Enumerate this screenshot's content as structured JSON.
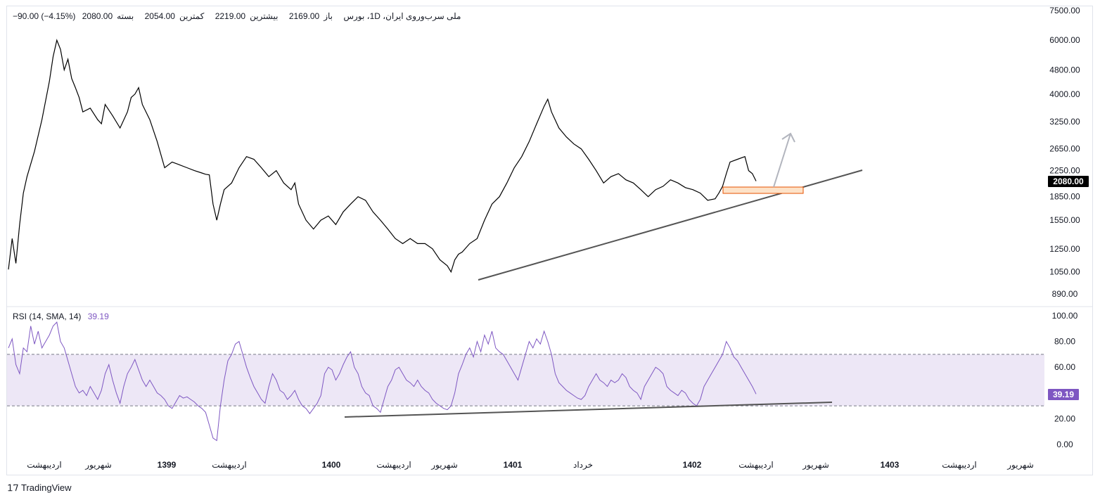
{
  "legend": {
    "symbol": "ملی سرب‌وروی ایران، 1D، بورس",
    "open_label": "باز",
    "open": "2169.00",
    "high_label": "بیشترین",
    "high": "2219.00",
    "low_label": "کمترین",
    "low": "2054.00",
    "close_label": "بسته",
    "close": "2080.00",
    "change": "−90.00 (−4.15%)"
  },
  "rsi_legend": {
    "label": "RSI (14, SMA, 14)",
    "value": "39.19"
  },
  "price_badge": "2080.00",
  "rsi_badge": "39.19",
  "branding": "TradingView",
  "colors": {
    "price": "#000000",
    "rsi": "#7e57c2",
    "rsi_band": "#ede7f6",
    "trend": "#545454",
    "arrow": "#b2b5be",
    "zone": "#fde2c8",
    "zone_border": "#e65100"
  },
  "chart_data": [
    {
      "type": "line",
      "name": "price",
      "scale": "log",
      "ylim": [
        830,
        7600
      ],
      "ytick_labels": [
        "7500.00",
        "6000.00",
        "4800.00",
        "4000.00",
        "3250.00",
        "2650.00",
        "2250.00",
        "1850.00",
        "1550.00",
        "1250.00",
        "1050.00",
        "890.00"
      ],
      "ytick_values": [
        7500,
        6000,
        4800,
        4000,
        3250,
        2650,
        2250,
        1850,
        1550,
        1250,
        1050,
        890
      ],
      "x_labels": [
        "اردیبهشت",
        "شهریور",
        "1399",
        "اردیبهشت",
        "1400",
        "اردیبهشت",
        "شهریور",
        "1401",
        "خرداد",
        "1402",
        "اردیبهشت",
        "شهریور",
        "1403",
        "اردیبهشت",
        "شهریور"
      ],
      "x_label_bold": [
        false,
        false,
        true,
        false,
        true,
        false,
        false,
        true,
        false,
        true,
        false,
        false,
        true,
        false,
        false
      ],
      "points": [
        [
          0,
          1070
        ],
        [
          5,
          1350
        ],
        [
          10,
          1120
        ],
        [
          15,
          1500
        ],
        [
          20,
          1900
        ],
        [
          25,
          2150
        ],
        [
          35,
          2600
        ],
        [
          45,
          3300
        ],
        [
          55,
          4400
        ],
        [
          60,
          5300
        ],
        [
          65,
          6000
        ],
        [
          70,
          5600
        ],
        [
          75,
          4800
        ],
        [
          80,
          5200
        ],
        [
          85,
          4500
        ],
        [
          90,
          4200
        ],
        [
          95,
          3900
        ],
        [
          100,
          3500
        ],
        [
          110,
          3600
        ],
        [
          120,
          3300
        ],
        [
          125,
          3200
        ],
        [
          130,
          3700
        ],
        [
          140,
          3400
        ],
        [
          150,
          3100
        ],
        [
          160,
          3500
        ],
        [
          165,
          3900
        ],
        [
          170,
          4000
        ],
        [
          175,
          4200
        ],
        [
          180,
          3700
        ],
        [
          190,
          3300
        ],
        [
          200,
          2800
        ],
        [
          210,
          2300
        ],
        [
          220,
          2400
        ],
        [
          230,
          2350
        ],
        [
          240,
          2300
        ],
        [
          250,
          2250
        ],
        [
          260,
          2210
        ],
        [
          265,
          2190
        ],
        [
          270,
          2180
        ],
        [
          275,
          1750
        ],
        [
          280,
          1550
        ],
        [
          285,
          1750
        ],
        [
          290,
          1950
        ],
        [
          300,
          2050
        ],
        [
          310,
          2300
        ],
        [
          320,
          2500
        ],
        [
          330,
          2450
        ],
        [
          340,
          2300
        ],
        [
          350,
          2150
        ],
        [
          360,
          2250
        ],
        [
          370,
          2050
        ],
        [
          380,
          1950
        ],
        [
          385,
          2050
        ],
        [
          390,
          1750
        ],
        [
          400,
          1550
        ],
        [
          410,
          1450
        ],
        [
          420,
          1550
        ],
        [
          430,
          1600
        ],
        [
          440,
          1500
        ],
        [
          450,
          1650
        ],
        [
          460,
          1750
        ],
        [
          470,
          1850
        ],
        [
          480,
          1800
        ],
        [
          490,
          1650
        ],
        [
          500,
          1550
        ],
        [
          510,
          1450
        ],
        [
          520,
          1350
        ],
        [
          530,
          1300
        ],
        [
          540,
          1350
        ],
        [
          550,
          1300
        ],
        [
          560,
          1300
        ],
        [
          570,
          1250
        ],
        [
          580,
          1150
        ],
        [
          590,
          1100
        ],
        [
          595,
          1050
        ],
        [
          600,
          1150
        ],
        [
          605,
          1200
        ],
        [
          610,
          1220
        ],
        [
          620,
          1300
        ],
        [
          630,
          1350
        ],
        [
          640,
          1550
        ],
        [
          650,
          1750
        ],
        [
          660,
          1850
        ],
        [
          670,
          2050
        ],
        [
          680,
          2300
        ],
        [
          690,
          2500
        ],
        [
          700,
          2800
        ],
        [
          710,
          3200
        ],
        [
          720,
          3650
        ],
        [
          725,
          3850
        ],
        [
          730,
          3500
        ],
        [
          740,
          3100
        ],
        [
          750,
          2900
        ],
        [
          760,
          2750
        ],
        [
          770,
          2650
        ],
        [
          780,
          2450
        ],
        [
          790,
          2250
        ],
        [
          800,
          2050
        ],
        [
          810,
          2150
        ],
        [
          820,
          2200
        ],
        [
          830,
          2100
        ],
        [
          840,
          2050
        ],
        [
          850,
          1950
        ],
        [
          860,
          1850
        ],
        [
          870,
          1950
        ],
        [
          880,
          2000
        ],
        [
          890,
          2100
        ],
        [
          900,
          2050
        ],
        [
          910,
          1980
        ],
        [
          920,
          1950
        ],
        [
          930,
          1900
        ],
        [
          940,
          1800
        ],
        [
          950,
          1820
        ],
        [
          955,
          1900
        ],
        [
          960,
          2000
        ],
        [
          965,
          2200
        ],
        [
          970,
          2400
        ],
        [
          980,
          2450
        ],
        [
          990,
          2500
        ],
        [
          995,
          2250
        ],
        [
          1000,
          2200
        ],
        [
          1005,
          2080
        ]
      ]
    },
    {
      "type": "line",
      "name": "RSI (14, SMA, 14)",
      "ylim": [
        -5,
        105
      ],
      "ytick_labels": [
        "100.00",
        "80.00",
        "60.00",
        "40.00",
        "20.00",
        "0.00"
      ],
      "ytick_values": [
        100,
        80,
        60,
        40,
        20,
        0
      ],
      "band": [
        30,
        70
      ],
      "points": [
        [
          0,
          75
        ],
        [
          5,
          82
        ],
        [
          10,
          62
        ],
        [
          15,
          55
        ],
        [
          20,
          75
        ],
        [
          25,
          72
        ],
        [
          30,
          92
        ],
        [
          35,
          78
        ],
        [
          40,
          88
        ],
        [
          45,
          75
        ],
        [
          50,
          80
        ],
        [
          55,
          85
        ],
        [
          60,
          92
        ],
        [
          65,
          95
        ],
        [
          70,
          80
        ],
        [
          75,
          75
        ],
        [
          80,
          65
        ],
        [
          85,
          55
        ],
        [
          90,
          45
        ],
        [
          95,
          40
        ],
        [
          100,
          42
        ],
        [
          105,
          38
        ],
        [
          110,
          45
        ],
        [
          115,
          40
        ],
        [
          120,
          35
        ],
        [
          125,
          42
        ],
        [
          130,
          55
        ],
        [
          135,
          62
        ],
        [
          140,
          50
        ],
        [
          145,
          40
        ],
        [
          150,
          32
        ],
        [
          155,
          45
        ],
        [
          160,
          55
        ],
        [
          165,
          60
        ],
        [
          170,
          66
        ],
        [
          175,
          58
        ],
        [
          180,
          50
        ],
        [
          185,
          45
        ],
        [
          190,
          50
        ],
        [
          195,
          45
        ],
        [
          200,
          40
        ],
        [
          205,
          38
        ],
        [
          210,
          35
        ],
        [
          215,
          30
        ],
        [
          220,
          28
        ],
        [
          225,
          33
        ],
        [
          230,
          38
        ],
        [
          235,
          36
        ],
        [
          240,
          37
        ],
        [
          245,
          35
        ],
        [
          250,
          33
        ],
        [
          255,
          30
        ],
        [
          260,
          28
        ],
        [
          265,
          25
        ],
        [
          270,
          15
        ],
        [
          275,
          5
        ],
        [
          280,
          3
        ],
        [
          285,
          30
        ],
        [
          290,
          50
        ],
        [
          295,
          65
        ],
        [
          300,
          70
        ],
        [
          305,
          78
        ],
        [
          310,
          80
        ],
        [
          315,
          70
        ],
        [
          320,
          60
        ],
        [
          325,
          52
        ],
        [
          330,
          45
        ],
        [
          335,
          40
        ],
        [
          340,
          35
        ],
        [
          345,
          32
        ],
        [
          350,
          45
        ],
        [
          355,
          55
        ],
        [
          360,
          50
        ],
        [
          365,
          42
        ],
        [
          370,
          40
        ],
        [
          375,
          35
        ],
        [
          380,
          38
        ],
        [
          385,
          42
        ],
        [
          390,
          35
        ],
        [
          395,
          30
        ],
        [
          400,
          28
        ],
        [
          405,
          24
        ],
        [
          410,
          28
        ],
        [
          415,
          32
        ],
        [
          420,
          38
        ],
        [
          425,
          55
        ],
        [
          430,
          60
        ],
        [
          435,
          58
        ],
        [
          440,
          50
        ],
        [
          445,
          55
        ],
        [
          450,
          62
        ],
        [
          455,
          68
        ],
        [
          460,
          72
        ],
        [
          465,
          60
        ],
        [
          470,
          55
        ],
        [
          475,
          45
        ],
        [
          480,
          40
        ],
        [
          485,
          38
        ],
        [
          490,
          30
        ],
        [
          495,
          28
        ],
        [
          500,
          25
        ],
        [
          505,
          35
        ],
        [
          510,
          45
        ],
        [
          515,
          50
        ],
        [
          520,
          58
        ],
        [
          525,
          60
        ],
        [
          530,
          55
        ],
        [
          535,
          50
        ],
        [
          540,
          48
        ],
        [
          545,
          45
        ],
        [
          550,
          50
        ],
        [
          555,
          45
        ],
        [
          560,
          42
        ],
        [
          565,
          40
        ],
        [
          570,
          35
        ],
        [
          575,
          32
        ],
        [
          580,
          30
        ],
        [
          585,
          28
        ],
        [
          590,
          27
        ],
        [
          595,
          30
        ],
        [
          600,
          40
        ],
        [
          605,
          55
        ],
        [
          610,
          62
        ],
        [
          615,
          70
        ],
        [
          620,
          75
        ],
        [
          625,
          68
        ],
        [
          630,
          80
        ],
        [
          635,
          72
        ],
        [
          640,
          85
        ],
        [
          645,
          78
        ],
        [
          650,
          88
        ],
        [
          655,
          75
        ],
        [
          660,
          72
        ],
        [
          665,
          70
        ],
        [
          670,
          65
        ],
        [
          675,
          60
        ],
        [
          680,
          55
        ],
        [
          685,
          50
        ],
        [
          690,
          60
        ],
        [
          695,
          70
        ],
        [
          700,
          80
        ],
        [
          705,
          75
        ],
        [
          710,
          82
        ],
        [
          715,
          78
        ],
        [
          720,
          88
        ],
        [
          725,
          80
        ],
        [
          730,
          70
        ],
        [
          735,
          55
        ],
        [
          740,
          48
        ],
        [
          745,
          45
        ],
        [
          750,
          42
        ],
        [
          755,
          40
        ],
        [
          760,
          38
        ],
        [
          765,
          36
        ],
        [
          770,
          35
        ],
        [
          775,
          38
        ],
        [
          780,
          45
        ],
        [
          785,
          50
        ],
        [
          790,
          55
        ],
        [
          795,
          50
        ],
        [
          800,
          48
        ],
        [
          805,
          45
        ],
        [
          810,
          50
        ],
        [
          815,
          48
        ],
        [
          820,
          50
        ],
        [
          825,
          55
        ],
        [
          830,
          52
        ],
        [
          835,
          45
        ],
        [
          840,
          42
        ],
        [
          845,
          40
        ],
        [
          850,
          35
        ],
        [
          855,
          45
        ],
        [
          860,
          50
        ],
        [
          865,
          55
        ],
        [
          870,
          60
        ],
        [
          875,
          58
        ],
        [
          880,
          55
        ],
        [
          885,
          45
        ],
        [
          890,
          42
        ],
        [
          895,
          40
        ],
        [
          900,
          38
        ],
        [
          905,
          42
        ],
        [
          910,
          40
        ],
        [
          915,
          35
        ],
        [
          920,
          32
        ],
        [
          925,
          30
        ],
        [
          930,
          35
        ],
        [
          935,
          45
        ],
        [
          940,
          50
        ],
        [
          945,
          55
        ],
        [
          950,
          60
        ],
        [
          955,
          65
        ],
        [
          960,
          70
        ],
        [
          965,
          80
        ],
        [
          970,
          75
        ],
        [
          975,
          68
        ],
        [
          980,
          65
        ],
        [
          985,
          60
        ],
        [
          990,
          55
        ],
        [
          995,
          50
        ],
        [
          1000,
          45
        ],
        [
          1005,
          39.19
        ]
      ]
    }
  ]
}
